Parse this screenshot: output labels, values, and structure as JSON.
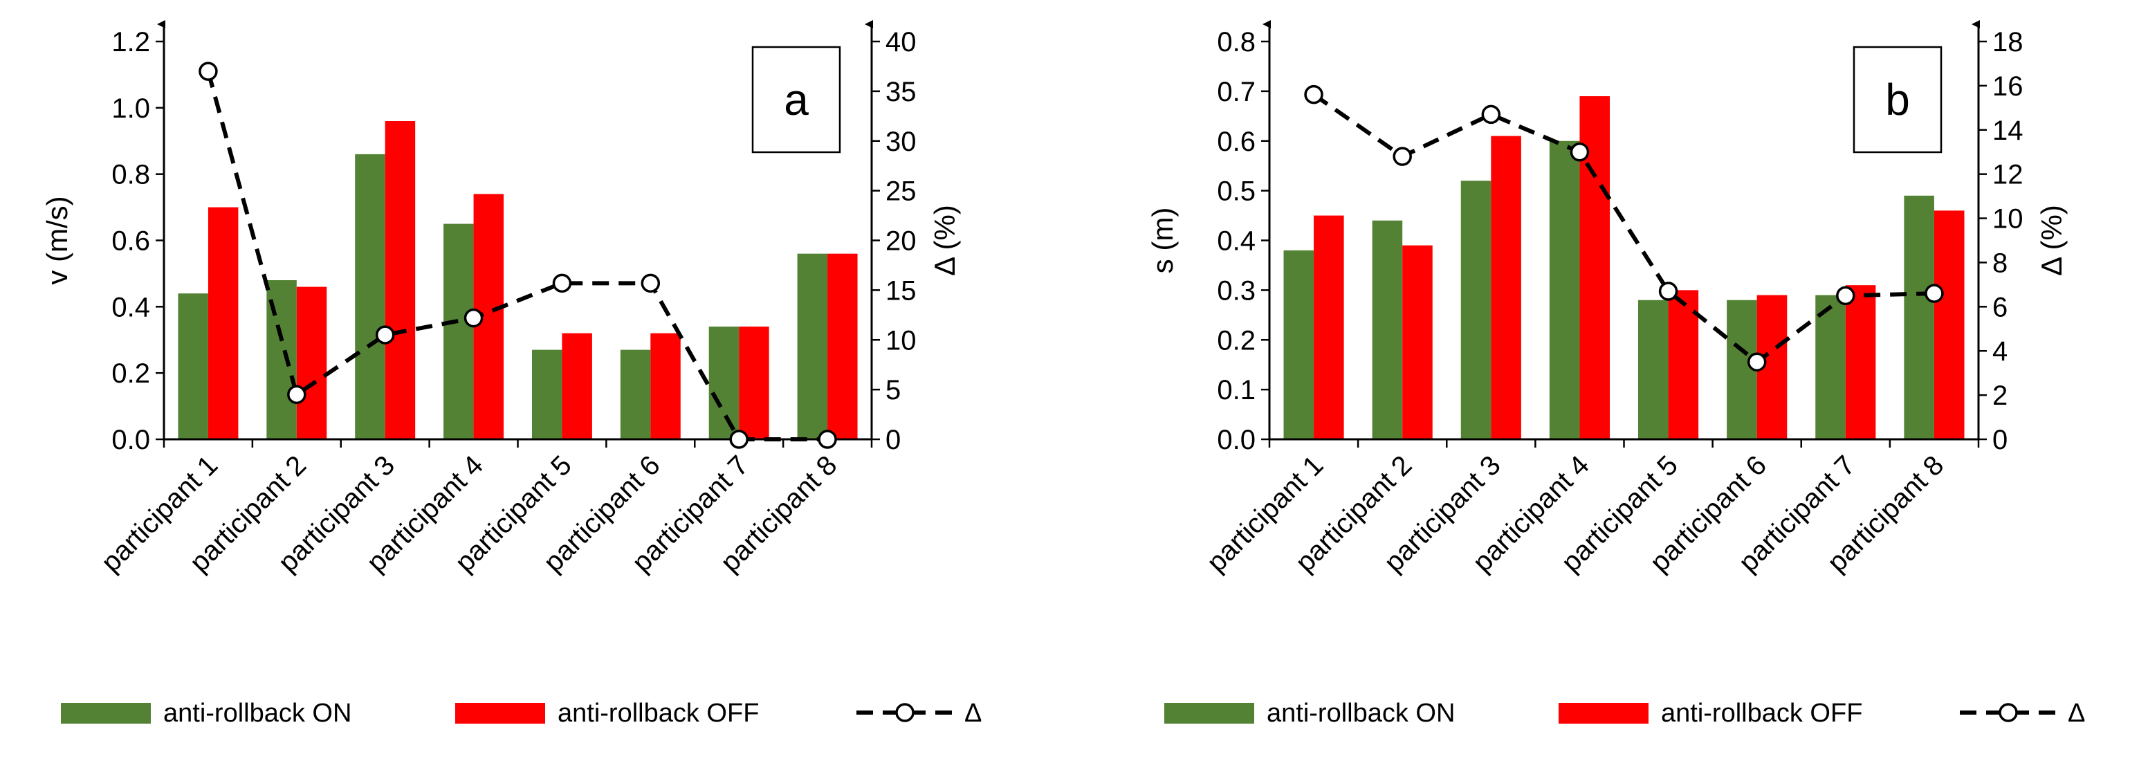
{
  "chart_data": [
    {
      "type": "bar",
      "panel_label": "a",
      "categories": [
        "participant 1",
        "participant 2",
        "participant 3",
        "participant 4",
        "participant 5",
        "participant 6",
        "participant 7",
        "participant 8"
      ],
      "series": [
        {
          "name": "anti-rollback ON",
          "color": "#548235",
          "values": [
            0.44,
            0.48,
            0.86,
            0.65,
            0.27,
            0.27,
            0.34,
            0.56
          ]
        },
        {
          "name": "anti-rollback OFF",
          "color": "#ff0000",
          "values": [
            0.7,
            0.46,
            0.96,
            0.74,
            0.32,
            0.32,
            0.34,
            0.56
          ]
        }
      ],
      "line_series": {
        "name": "Δ",
        "values": [
          37,
          4.5,
          10.5,
          12.2,
          15.7,
          15.7,
          0,
          0
        ]
      },
      "ylabel": "v (m/s)",
      "ylim": [
        0,
        1.2
      ],
      "yticks": [
        "0.0",
        "0.2",
        "0.4",
        "0.6",
        "0.8",
        "1.0",
        "1.2"
      ],
      "y2label": "Δ (%)",
      "y2lim": [
        0,
        40
      ],
      "y2ticks": [
        "0",
        "5",
        "10",
        "15",
        "20",
        "25",
        "30",
        "35",
        "40"
      ],
      "legend": [
        "anti-rollback ON",
        "anti-rollback OFF",
        "Δ"
      ],
      "legend_position": "bottom"
    },
    {
      "type": "bar",
      "panel_label": "b",
      "categories": [
        "participant 1",
        "participant 2",
        "participant 3",
        "participant 4",
        "participant 5",
        "participant 6",
        "participant 7",
        "participant 8"
      ],
      "series": [
        {
          "name": "anti-rollback ON",
          "color": "#548235",
          "values": [
            0.38,
            0.44,
            0.52,
            0.6,
            0.28,
            0.28,
            0.29,
            0.49
          ]
        },
        {
          "name": "anti-rollback OFF",
          "color": "#ff0000",
          "values": [
            0.45,
            0.39,
            0.61,
            0.69,
            0.3,
            0.29,
            0.31,
            0.46
          ]
        }
      ],
      "line_series": {
        "name": "Δ",
        "values": [
          15.6,
          12.8,
          14.7,
          13.0,
          6.7,
          3.5,
          6.5,
          6.6
        ]
      },
      "ylabel": "s (m)",
      "ylim": [
        0,
        0.8
      ],
      "yticks": [
        "0.0",
        "0.1",
        "0.2",
        "0.3",
        "0.4",
        "0.5",
        "0.6",
        "0.7",
        "0.8"
      ],
      "y2label": "Δ (%)",
      "y2lim": [
        0,
        18
      ],
      "y2ticks": [
        "0",
        "2",
        "4",
        "6",
        "8",
        "10",
        "12",
        "14",
        "16",
        "18"
      ],
      "legend": [
        "anti-rollback ON",
        "anti-rollback OFF",
        "Δ"
      ],
      "legend_position": "bottom"
    }
  ]
}
